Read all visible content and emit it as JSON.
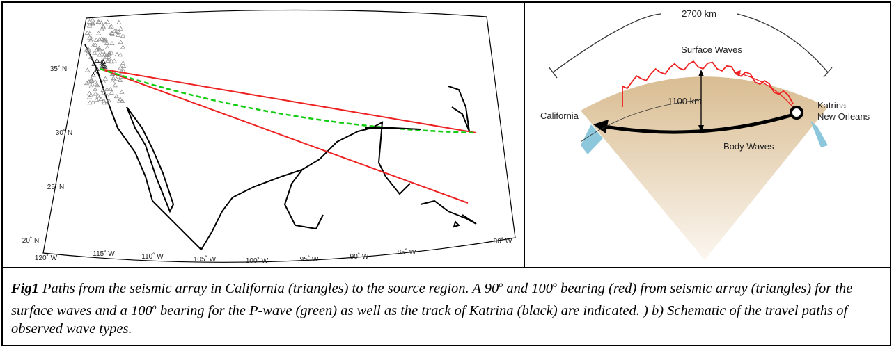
{
  "map": {
    "lat_labels": [
      "35˚ N",
      "30˚ N",
      "25˚ N",
      "20˚ N"
    ],
    "lon_labels": [
      "120˚ W",
      "115˚ W",
      "110˚ W",
      "105˚ W",
      "100˚ W",
      "95˚ W",
      "90˚ W",
      "85˚ W",
      "80˚ W"
    ]
  },
  "schematic": {
    "distance": "2700 km",
    "surface": "Surface Waves",
    "depth": "1100 km",
    "west": "California",
    "east_1": "Katrina",
    "east_2": "New Orleans",
    "body": "Body Waves"
  },
  "caption": {
    "label": "Fig1",
    "runs": [
      {
        "text": " Paths from the seismic array in California (triangles) to the source region.  A 90"
      },
      {
        "sup": "o"
      },
      {
        "text": " and 100"
      },
      {
        "sup": "o"
      },
      {
        "text": " bearing (red) from seismic array (triangles) for the surface waves and a 100"
      },
      {
        "sup": "o"
      },
      {
        "text": " bearing for the P-wave (green) as well as the track of Katrina (black) are indicated. ) b) Schematic of the travel paths of observed wave types."
      }
    ]
  }
}
